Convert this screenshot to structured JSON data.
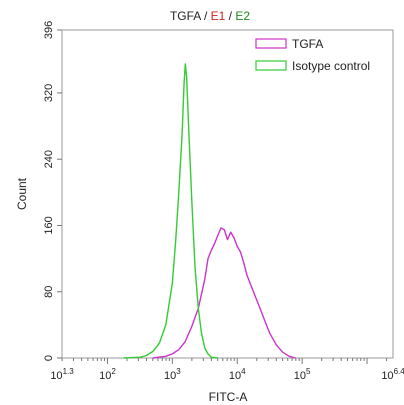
{
  "chart_data": {
    "type": "line",
    "title_parts": [
      {
        "text": "TGFA",
        "color": "#222222"
      },
      {
        "text": " / ",
        "color": "#222222"
      },
      {
        "text": "E1",
        "color": "#d42020"
      },
      {
        "text": " / ",
        "color": "#222222"
      },
      {
        "text": "E2",
        "color": "#1e8c1e"
      }
    ],
    "xlabel": "FITC-A",
    "ylabel": "Count",
    "x_scale": "log",
    "xlim": [
      1.3,
      6.4
    ],
    "ylim": [
      0,
      396
    ],
    "y_ticks": [
      0,
      80,
      160,
      240,
      320,
      396
    ],
    "x_ticks": [
      {
        "exp": 1.3,
        "base": "10",
        "sup": "1.3"
      },
      {
        "exp": 2,
        "base": "10",
        "sup": "2"
      },
      {
        "exp": 3,
        "base": "10",
        "sup": "3"
      },
      {
        "exp": 4,
        "base": "10",
        "sup": "4"
      },
      {
        "exp": 5,
        "base": "10",
        "sup": "5"
      },
      {
        "exp": 6.4,
        "base": "10",
        "sup": "6.4"
      }
    ],
    "legend_position": "top-right",
    "series": [
      {
        "name": "TGFA",
        "color": "#cc33cc",
        "points": [
          [
            2.7,
            0
          ],
          [
            2.9,
            2
          ],
          [
            3.0,
            5
          ],
          [
            3.1,
            10
          ],
          [
            3.2,
            20
          ],
          [
            3.3,
            38
          ],
          [
            3.4,
            60
          ],
          [
            3.5,
            95
          ],
          [
            3.55,
            120
          ],
          [
            3.6,
            130
          ],
          [
            3.65,
            138
          ],
          [
            3.7,
            148
          ],
          [
            3.75,
            157
          ],
          [
            3.8,
            155
          ],
          [
            3.85,
            143
          ],
          [
            3.9,
            152
          ],
          [
            3.95,
            145
          ],
          [
            4.0,
            135
          ],
          [
            4.05,
            128
          ],
          [
            4.1,
            115
          ],
          [
            4.15,
            100
          ],
          [
            4.2,
            90
          ],
          [
            4.3,
            70
          ],
          [
            4.35,
            60
          ],
          [
            4.4,
            50
          ],
          [
            4.5,
            30
          ],
          [
            4.6,
            16
          ],
          [
            4.7,
            7
          ],
          [
            4.8,
            2
          ],
          [
            4.9,
            0
          ]
        ]
      },
      {
        "name": "Isotype control",
        "color": "#33cc33",
        "points": [
          [
            2.25,
            0
          ],
          [
            2.5,
            1
          ],
          [
            2.6,
            3
          ],
          [
            2.7,
            8
          ],
          [
            2.8,
            18
          ],
          [
            2.9,
            40
          ],
          [
            3.0,
            90
          ],
          [
            3.05,
            140
          ],
          [
            3.1,
            200
          ],
          [
            3.15,
            270
          ],
          [
            3.18,
            330
          ],
          [
            3.2,
            355
          ],
          [
            3.22,
            340
          ],
          [
            3.25,
            280
          ],
          [
            3.3,
            190
          ],
          [
            3.35,
            110
          ],
          [
            3.4,
            60
          ],
          [
            3.45,
            30
          ],
          [
            3.5,
            12
          ],
          [
            3.55,
            5
          ],
          [
            3.6,
            1
          ],
          [
            3.7,
            0
          ]
        ]
      }
    ]
  }
}
